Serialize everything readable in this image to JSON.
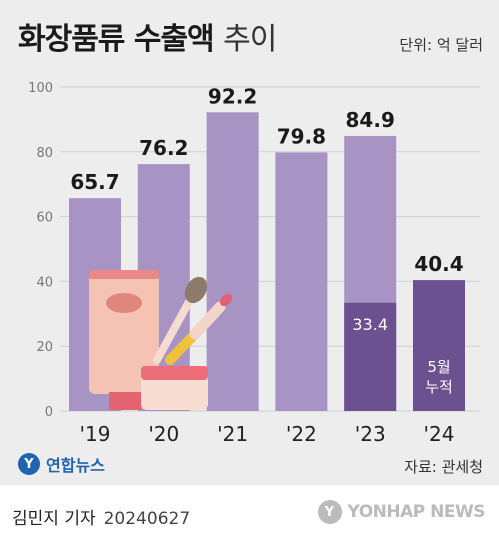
{
  "header": {
    "title_bold": "화장품류 수출액",
    "title_light": "추이",
    "unit": "단위: 억 달러"
  },
  "chart_data": {
    "type": "bar",
    "categories": [
      "'19",
      "'20",
      "'21",
      "'22",
      "'23",
      "'24"
    ],
    "values": [
      65.7,
      76.2,
      92.2,
      79.8,
      84.9,
      40.4
    ],
    "value_labels": [
      "65.7",
      "76.2",
      "92.2",
      "79.8",
      "84.9",
      "40.4"
    ],
    "partial": {
      "index": 4,
      "value": 33.4,
      "label": "33.4"
    },
    "note": {
      "index": 5,
      "lines": [
        "5월",
        "누적"
      ]
    },
    "ylim": [
      0,
      100
    ],
    "yticks": [
      0,
      20,
      40,
      60,
      80,
      100
    ],
    "grid": true,
    "colors": {
      "bar": "#a794c4",
      "highlight": "#6c5190"
    }
  },
  "footer": {
    "logo_mark": "Y",
    "logo_text": "연합뉴스",
    "source": "자료: 관세청",
    "author": "김민지 기자",
    "date": "20240627",
    "agency_mark": "Y",
    "agency_text": "YONHAP NEWS"
  }
}
